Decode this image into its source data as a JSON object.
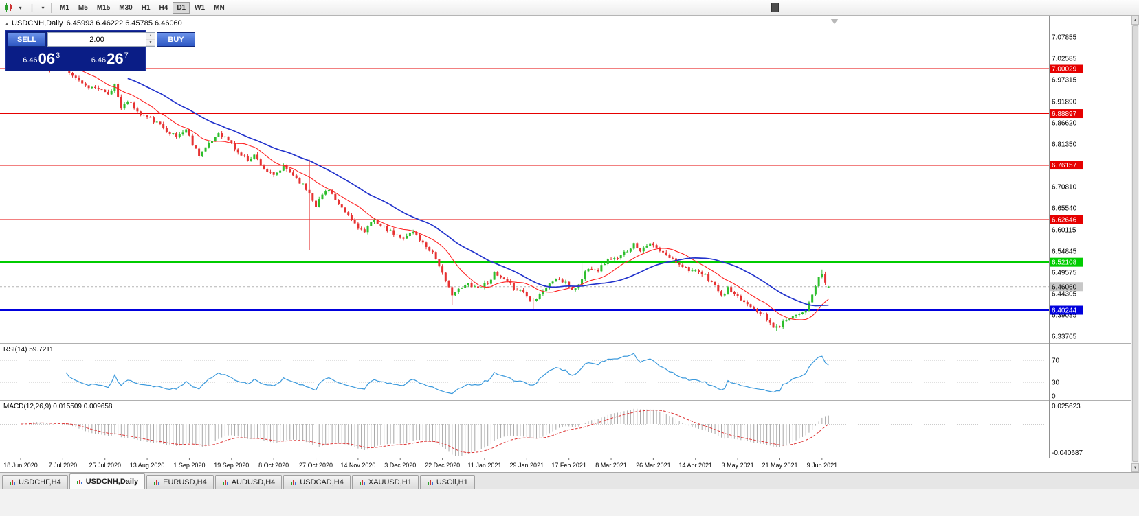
{
  "icons": {
    "dropdown": "▾",
    "collapse": "▴",
    "spin_up": "▲",
    "spin_down": "▼",
    "scroll_up": "▲",
    "scroll_down": "▼"
  },
  "colors": {
    "candle_up": "#2DBE2D",
    "candle_down": "#E63232"
  },
  "toolbar": {
    "timeframes": [
      {
        "label": "M1",
        "active": false
      },
      {
        "label": "M5",
        "active": false
      },
      {
        "label": "M15",
        "active": false
      },
      {
        "label": "M30",
        "active": false
      },
      {
        "label": "H1",
        "active": false
      },
      {
        "label": "H4",
        "active": false
      },
      {
        "label": "D1",
        "active": true
      },
      {
        "label": "W1",
        "active": false
      },
      {
        "label": "MN",
        "active": false
      }
    ]
  },
  "chart_header": {
    "title": "USDCNH,Daily",
    "ohlc": "6.45993 6.46222 6.45785 6.46060"
  },
  "trade_panel": {
    "sell_label": "SELL",
    "buy_label": "BUY",
    "volume": "2.00",
    "sell_price": {
      "prefix": "6.46",
      "big": "06",
      "sup": "3"
    },
    "buy_price": {
      "prefix": "6.46",
      "big": "26",
      "sup": "7"
    },
    "sell_price_full": "6.46063",
    "buy_price_full": "6.46267"
  },
  "price_axis": {
    "labels": [
      "7.07855",
      "7.02585",
      "6.97315",
      "6.91890",
      "6.86620",
      "6.81350",
      "6.70810",
      "6.65540",
      "6.60115",
      "6.54845",
      "6.49575",
      "6.44305",
      "6.39035",
      "6.33765"
    ]
  },
  "tabs": [
    {
      "label": "USDCHF,H4",
      "active": false
    },
    {
      "label": "USDCNH,Daily",
      "active": true
    },
    {
      "label": "EURUSD,H4",
      "active": false
    },
    {
      "label": "AUDUSD,H4",
      "active": false
    },
    {
      "label": "USDCAD,H4",
      "active": false
    },
    {
      "label": "XAUUSD,H1",
      "active": false
    },
    {
      "label": "USOil,H1",
      "active": false
    }
  ],
  "chart_data": {
    "type": "candlestick",
    "title": "USDCNH,Daily",
    "symbol": "USDCNH",
    "timeframe": "Daily",
    "current_bar": {
      "open": 6.45993,
      "high": 6.46222,
      "low": 6.45785,
      "close": 6.4606
    },
    "y_axis": {
      "min": 6.32262,
      "max": 7.12937
    },
    "num_candles": 250,
    "seed": 11,
    "close_waypoints": [
      [
        0,
        7.005
      ],
      [
        3,
        7.018
      ],
      [
        6,
        7.012
      ],
      [
        9,
        6.996
      ],
      [
        12,
        7.014
      ],
      [
        16,
        6.986
      ],
      [
        20,
        6.958
      ],
      [
        24,
        6.95
      ],
      [
        27,
        6.934
      ],
      [
        29,
        6.96
      ],
      [
        31,
        6.906
      ],
      [
        34,
        6.918
      ],
      [
        36,
        6.892
      ],
      [
        40,
        6.876
      ],
      [
        43,
        6.86
      ],
      [
        46,
        6.842
      ],
      [
        48,
        6.832
      ],
      [
        51,
        6.85
      ],
      [
        53,
        6.814
      ],
      [
        55,
        6.788
      ],
      [
        58,
        6.812
      ],
      [
        61,
        6.842
      ],
      [
        64,
        6.824
      ],
      [
        67,
        6.792
      ],
      [
        70,
        6.776
      ],
      [
        72,
        6.786
      ],
      [
        75,
        6.752
      ],
      [
        78,
        6.734
      ],
      [
        81,
        6.756
      ],
      [
        84,
        6.738
      ],
      [
        87,
        6.712
      ],
      [
        89,
        6.692
      ],
      [
        91,
        6.662
      ],
      [
        93,
        6.688
      ],
      [
        95,
        6.704
      ],
      [
        98,
        6.66
      ],
      [
        101,
        6.636
      ],
      [
        104,
        6.608
      ],
      [
        106,
        6.594
      ],
      [
        109,
        6.63
      ],
      [
        111,
        6.61
      ],
      [
        114,
        6.596
      ],
      [
        117,
        6.58
      ],
      [
        121,
        6.596
      ],
      [
        124,
        6.568
      ],
      [
        127,
        6.546
      ],
      [
        129,
        6.514
      ],
      [
        131,
        6.47
      ],
      [
        133,
        6.444
      ],
      [
        135,
        6.452
      ],
      [
        138,
        6.468
      ],
      [
        141,
        6.458
      ],
      [
        144,
        6.472
      ],
      [
        146,
        6.492
      ],
      [
        149,
        6.476
      ],
      [
        152,
        6.458
      ],
      [
        155,
        6.448
      ],
      [
        157,
        6.426
      ],
      [
        159,
        6.434
      ],
      [
        161,
        6.452
      ],
      [
        163,
        6.466
      ],
      [
        165,
        6.482
      ],
      [
        168,
        6.468
      ],
      [
        170,
        6.454
      ],
      [
        172,
        6.464
      ],
      [
        174,
        6.498
      ],
      [
        176,
        6.508
      ],
      [
        178,
        6.502
      ],
      [
        180,
        6.52
      ],
      [
        182,
        6.532
      ],
      [
        184,
        6.528
      ],
      [
        186,
        6.544
      ],
      [
        189,
        6.566
      ],
      [
        191,
        6.552
      ],
      [
        193,
        6.566
      ],
      [
        195,
        6.562
      ],
      [
        197,
        6.548
      ],
      [
        199,
        6.538
      ],
      [
        201,
        6.528
      ],
      [
        203,
        6.518
      ],
      [
        205,
        6.508
      ],
      [
        208,
        6.496
      ],
      [
        211,
        6.488
      ],
      [
        213,
        6.472
      ],
      [
        215,
        6.452
      ],
      [
        216,
        6.434
      ],
      [
        218,
        6.456
      ],
      [
        220,
        6.438
      ],
      [
        222,
        6.428
      ],
      [
        224,
        6.418
      ],
      [
        226,
        6.408
      ],
      [
        228,
        6.398
      ],
      [
        230,
        6.378
      ],
      [
        232,
        6.362
      ],
      [
        233,
        6.358
      ],
      [
        235,
        6.372
      ],
      [
        237,
        6.386
      ],
      [
        239,
        6.392
      ],
      [
        240,
        6.396
      ],
      [
        241,
        6.398
      ],
      [
        242,
        6.405
      ],
      [
        243,
        6.418
      ],
      [
        244,
        6.44
      ],
      [
        245,
        6.462
      ],
      [
        246,
        6.48
      ],
      [
        247,
        6.494
      ],
      [
        248,
        6.47
      ],
      [
        249,
        6.4606
      ]
    ],
    "wick_events": [
      {
        "i": 89,
        "low": 6.552,
        "high": 6.775
      },
      {
        "i": 133,
        "low": 6.415
      },
      {
        "i": 158,
        "low": 6.405
      },
      {
        "i": 173,
        "high": 6.518
      },
      {
        "i": 233,
        "low": 6.351
      },
      {
        "i": 247,
        "high": 6.503
      }
    ],
    "levels": [
      {
        "price": 7.00029,
        "label": "7.00029",
        "color": "#E60000",
        "width": 1.4,
        "name": "resistance-line-7-00029"
      },
      {
        "price": 6.88897,
        "label": "6.88897",
        "color": "#E60000",
        "width": 1.4,
        "name": "resistance-line-6-88897"
      },
      {
        "price": 6.76157,
        "label": "6.76157",
        "color": "#E60000",
        "width": 1.4,
        "name": "resistance-line-6-76157"
      },
      {
        "price": 6.62646,
        "label": "6.62646",
        "color": "#E60000",
        "width": 1.4,
        "name": "resistance-line-6-62646"
      },
      {
        "price": 6.52108,
        "label": "6.52108",
        "color": "#00CC00",
        "width": 2,
        "name": "support-line-6-52108"
      },
      {
        "price": 6.40244,
        "label": "6.40244",
        "color": "#0000DD",
        "width": 2.4,
        "name": "support-line-6-40244"
      }
    ],
    "current_price_tag": {
      "label": "6.46060",
      "price": 6.4606,
      "bg": "#C8C8C8",
      "fg": "#000000"
    },
    "moving_averages": [
      {
        "name": "ma-fast",
        "period": 13,
        "color": "#FF2222",
        "width": 1.1
      },
      {
        "name": "ma-slow",
        "period": 34,
        "color": "#2233CC",
        "width": 1.7
      }
    ],
    "date_labels": [
      {
        "text": "18 Jun 2020",
        "i": 0
      },
      {
        "text": "7 Jul 2020",
        "i": 13
      },
      {
        "text": "25 Jul 2020",
        "i": 26
      },
      {
        "text": "13 Aug 2020",
        "i": 39
      },
      {
        "text": "1 Sep 2020",
        "i": 52
      },
      {
        "text": "19 Sep 2020",
        "i": 65
      },
      {
        "text": "8 Oct 2020",
        "i": 78
      },
      {
        "text": "27 Oct 2020",
        "i": 91
      },
      {
        "text": "14 Nov 2020",
        "i": 104
      },
      {
        "text": "3 Dec 2020",
        "i": 117
      },
      {
        "text": "22 Dec 2020",
        "i": 130
      },
      {
        "text": "11 Jan 2021",
        "i": 143
      },
      {
        "text": "29 Jan 2021",
        "i": 156
      },
      {
        "text": "17 Feb 2021",
        "i": 169
      },
      {
        "text": "8 Mar 2021",
        "i": 182
      },
      {
        "text": "26 Mar 2021",
        "i": 195
      },
      {
        "text": "14 Apr 2021",
        "i": 208
      },
      {
        "text": "3 May 2021",
        "i": 221
      },
      {
        "text": "21 May 2021",
        "i": 234
      },
      {
        "text": "9 Jun 2021",
        "i": 247
      }
    ],
    "rsi_display": "RSI(14) 59.7211",
    "rsi": {
      "period": 14,
      "color": "#3A99DC",
      "levels": [
        70,
        30,
        0
      ],
      "last_value": 59.7211
    },
    "macd_display": "MACD(12,26,9) 0.015509 0.009658",
    "macd": {
      "fast": 12,
      "slow": 26,
      "signal": 9,
      "hist_color": "#A8A8A8",
      "signal_color": "#DD3333",
      "last_main": 0.015509,
      "last_signal": 0.009658,
      "axis_labels": [
        {
          "v": 0.025623,
          "text": "0.025623"
        },
        {
          "v": -0.040687,
          "text": "-0.040687"
        }
      ]
    }
  }
}
